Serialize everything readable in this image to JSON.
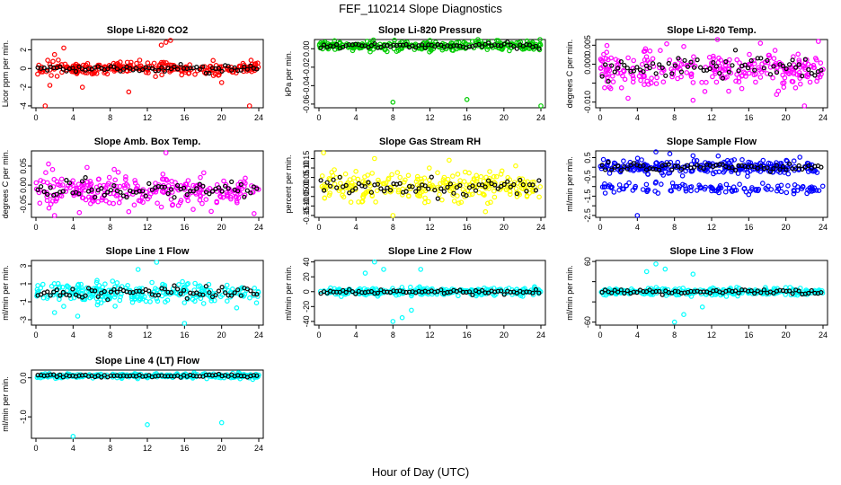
{
  "page_title": "FEF_110214  Slope Diagnostics",
  "x_axis_label": "Hour of Day (UTC)",
  "x_ticks": [
    0,
    4,
    8,
    12,
    16,
    20,
    24
  ],
  "chart_data": [
    {
      "type": "scatter",
      "title": "Slope Li-820 CO2",
      "ylabel": "Licor ppm per min.",
      "yticks": [
        -4,
        -2,
        0,
        2
      ],
      "ytick_labels": [
        "-4",
        "-2",
        "0",
        "2"
      ],
      "ylim": [
        -4.2,
        3.1
      ],
      "color": "#ff0000",
      "xlim": [
        0,
        24
      ],
      "series": [
        {
          "name": "points",
          "band": 0.55,
          "center": 0
        },
        {
          "name": "hourly",
          "color": "#000000"
        }
      ],
      "outliers": [
        [
          2,
          1.5
        ],
        [
          3,
          2.2
        ],
        [
          1.5,
          -1.8
        ],
        [
          14,
          2.8
        ],
        [
          14.5,
          3
        ],
        [
          13.5,
          2.5
        ],
        [
          23,
          -4
        ],
        [
          1,
          -4
        ],
        [
          10,
          -2.5
        ],
        [
          20,
          -1.5
        ],
        [
          5,
          -2
        ]
      ]
    },
    {
      "type": "scatter",
      "title": "Slope Li-820 Pressure",
      "ylabel": "kPa per min.",
      "yticks": [
        -0.06,
        -0.04,
        -0.02,
        0
      ],
      "ytick_labels": [
        "-0.06",
        "-0.04",
        "-0.02",
        "0.00"
      ],
      "ylim": [
        -0.064,
        0.01
      ],
      "color": "#00cc00",
      "xlim": [
        0,
        24
      ],
      "series": [
        {
          "name": "points",
          "band": 0.004,
          "center": 0.003
        },
        {
          "name": "hourly",
          "color": "#000000"
        }
      ],
      "outliers": [
        [
          8,
          -0.058
        ],
        [
          16,
          -0.055
        ],
        [
          24,
          -0.062
        ],
        [
          17.5,
          0.008
        ],
        [
          12,
          0.009
        ]
      ]
    },
    {
      "type": "scatter",
      "title": "Slope Li-820 Temp.",
      "ylabel": "degrees C per min.",
      "yticks": [
        -0.01,
        -0.005,
        0,
        0.005
      ],
      "ytick_labels": [
        "-0.010",
        "",
        "0.000",
        "0.005"
      ],
      "ylim": [
        -0.0115,
        0.0065
      ],
      "color": "#ff00ff",
      "xlim": [
        0,
        24
      ],
      "series": [
        {
          "name": "points",
          "band": 0.004,
          "center": -0.001
        },
        {
          "name": "hourly",
          "color": "#000000"
        }
      ],
      "outliers": [
        [
          22,
          -0.011
        ],
        [
          10,
          -0.0095
        ],
        [
          19,
          -0.008
        ],
        [
          23.5,
          0.006
        ],
        [
          3,
          -0.009
        ]
      ]
    },
    {
      "type": "scatter",
      "title": "Slope Amb. Box Temp.",
      "ylabel": "degrees C per min.",
      "yticks": [
        -0.05,
        0,
        0.05
      ],
      "ytick_labels": [
        "-0.05",
        "0.00",
        "0.05"
      ],
      "ylim": [
        -0.085,
        0.09
      ],
      "color": "#ff00ff",
      "xlim": [
        0,
        24
      ],
      "series": [
        {
          "name": "points",
          "band": 0.035,
          "center": -0.015
        },
        {
          "name": "hourly",
          "color": "#000000"
        }
      ],
      "outliers": [
        [
          14,
          0.085
        ],
        [
          2,
          -0.08
        ],
        [
          23.5,
          -0.075
        ],
        [
          10,
          -0.07
        ]
      ]
    },
    {
      "type": "scatter",
      "title": "Slope Gas Stream RH",
      "ylabel": "percent per min.",
      "yticks": [
        -0.15,
        -0.1,
        -0.05,
        0,
        0.05,
        0.1,
        0.15
      ],
      "ytick_labels": [
        "-0.15",
        "-0.10",
        "-0.05",
        "0.00",
        "0.05",
        "0.10",
        "0.15"
      ],
      "ylim": [
        -0.16,
        0.19
      ],
      "color": "#ffff00",
      "xlim": [
        0,
        24
      ],
      "series": [
        {
          "name": "points",
          "band": 0.06,
          "center": 0
        },
        {
          "name": "hourly",
          "color": "#000000"
        }
      ],
      "outliers": [
        [
          0.5,
          0.18
        ],
        [
          8,
          -0.15
        ],
        [
          6,
          0.15
        ],
        [
          18,
          -0.13
        ]
      ]
    },
    {
      "type": "scatter",
      "title": "Slope Sample Flow",
      "ylabel": "ml/min per min.",
      "yticks": [
        -2.5,
        -2,
        -1.5,
        -1,
        -0.5,
        0,
        0.5
      ],
      "ytick_labels": [
        "-2.5",
        "",
        "-1.5",
        "",
        "-0.5",
        "",
        "0.5"
      ],
      "ylim": [
        -2.6,
        0.85
      ],
      "color": "#0000ff",
      "xlim": [
        0,
        24
      ],
      "series": [
        {
          "name": "points",
          "band": 0.3,
          "center": 0
        },
        {
          "name": "lower",
          "band": 0.2,
          "center": -1.1
        },
        {
          "name": "hourly",
          "color": "#000000"
        }
      ],
      "outliers": [
        [
          4,
          -2.5
        ],
        [
          6,
          0.8
        ],
        [
          7.5,
          0.7
        ],
        [
          10,
          0.6
        ]
      ]
    },
    {
      "type": "scatter",
      "title": "Slope Line 1 Flow",
      "ylabel": "ml/min per min.",
      "yticks": [
        -3,
        -1,
        1,
        3
      ],
      "ytick_labels": [
        "-3",
        "-1",
        "1",
        "3"
      ],
      "ylim": [
        -3.6,
        3.6
      ],
      "color": "#00ffff",
      "xlim": [
        0,
        24
      ],
      "series": [
        {
          "name": "points",
          "band": 1.0,
          "center": 0
        },
        {
          "name": "hourly",
          "color": "#000000"
        }
      ],
      "outliers": [
        [
          13,
          3.4
        ],
        [
          16,
          -3.4
        ],
        [
          4.5,
          -2.6
        ],
        [
          2,
          -2.2
        ],
        [
          11,
          2.6
        ]
      ]
    },
    {
      "type": "scatter",
      "title": "Slope Line 2 Flow",
      "ylabel": "ml/min per min.",
      "yticks": [
        -40,
        -20,
        0,
        20,
        40
      ],
      "ytick_labels": [
        "-40",
        "-20",
        "0",
        "20",
        "40"
      ],
      "ylim": [
        -45,
        42
      ],
      "color": "#00ffff",
      "xlim": [
        0,
        24
      ],
      "series": [
        {
          "name": "points",
          "band": 4,
          "center": 0
        },
        {
          "name": "hourly",
          "color": "#000000"
        }
      ],
      "outliers": [
        [
          6,
          40
        ],
        [
          8,
          -40
        ],
        [
          9,
          -35
        ],
        [
          7,
          30
        ],
        [
          10,
          -25
        ],
        [
          5,
          25
        ],
        [
          11,
          30
        ]
      ]
    },
    {
      "type": "scatter",
      "title": "Slope Line 3 Flow",
      "ylabel": "ml/min per min.",
      "yticks": [
        -60,
        -20,
        20,
        60
      ],
      "ytick_labels": [
        "-60",
        "",
        "",
        "60"
      ],
      "ylim": [
        -66,
        62
      ],
      "color": "#00ffff",
      "xlim": [
        0,
        24
      ],
      "series": [
        {
          "name": "points",
          "band": 6,
          "center": 0
        },
        {
          "name": "hourly",
          "color": "#000000"
        }
      ],
      "outliers": [
        [
          6,
          55
        ],
        [
          8,
          -60
        ],
        [
          7,
          45
        ],
        [
          9,
          -45
        ],
        [
          5,
          40
        ],
        [
          10,
          35
        ],
        [
          11,
          -30
        ]
      ]
    },
    {
      "type": "scatter",
      "title": "Slope Line 4 (LT) Flow",
      "ylabel": "ml/min per min.",
      "yticks": [
        -1,
        0
      ],
      "ytick_labels": [
        "-1.0",
        "0.0"
      ],
      "ylim": [
        -1.55,
        0.2
      ],
      "color": "#00ffff",
      "xlim": [
        0,
        24
      ],
      "series": [
        {
          "name": "points",
          "band": 0.05,
          "center": 0.05
        },
        {
          "name": "hourly",
          "color": "#000000"
        }
      ],
      "outliers": [
        [
          4,
          -1.5
        ],
        [
          12,
          -1.2
        ],
        [
          20,
          -1.15
        ]
      ]
    }
  ]
}
